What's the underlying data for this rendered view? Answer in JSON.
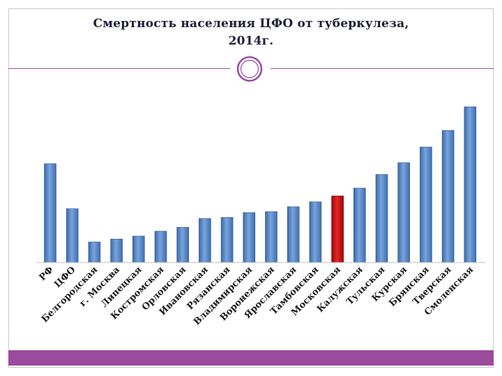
{
  "title_line1": "Смертность населения ЦФО от туберкулеза,",
  "title_line2": "2014г.",
  "colors": {
    "bar": "#4f81bd",
    "highlight_bar": "#c00000",
    "accent": "#9a4b9d"
  },
  "chart_data": {
    "type": "bar",
    "categories": [
      "РФ",
      "ЦФО",
      "Белгородская",
      "г. Москва",
      "Липецкая",
      "Костромская",
      "Орловская",
      "Ивановская",
      "Рязанская",
      "Владимирская",
      "Воронежская",
      "Ярославская",
      "Тамбовская",
      "Московская",
      "Калужская",
      "Тульская",
      "Курская",
      "Брянская",
      "Тверская",
      "Смоленская"
    ],
    "values": [
      10.1,
      5.5,
      2.1,
      2.4,
      2.7,
      3.2,
      3.6,
      4.5,
      4.6,
      5.1,
      5.2,
      5.7,
      6.2,
      6.8,
      7.6,
      9.0,
      10.2,
      11.8,
      13.5,
      15.9
    ],
    "highlight": "Московская",
    "ylim": [
      0,
      16.5
    ],
    "grid": false,
    "legend": "none"
  }
}
